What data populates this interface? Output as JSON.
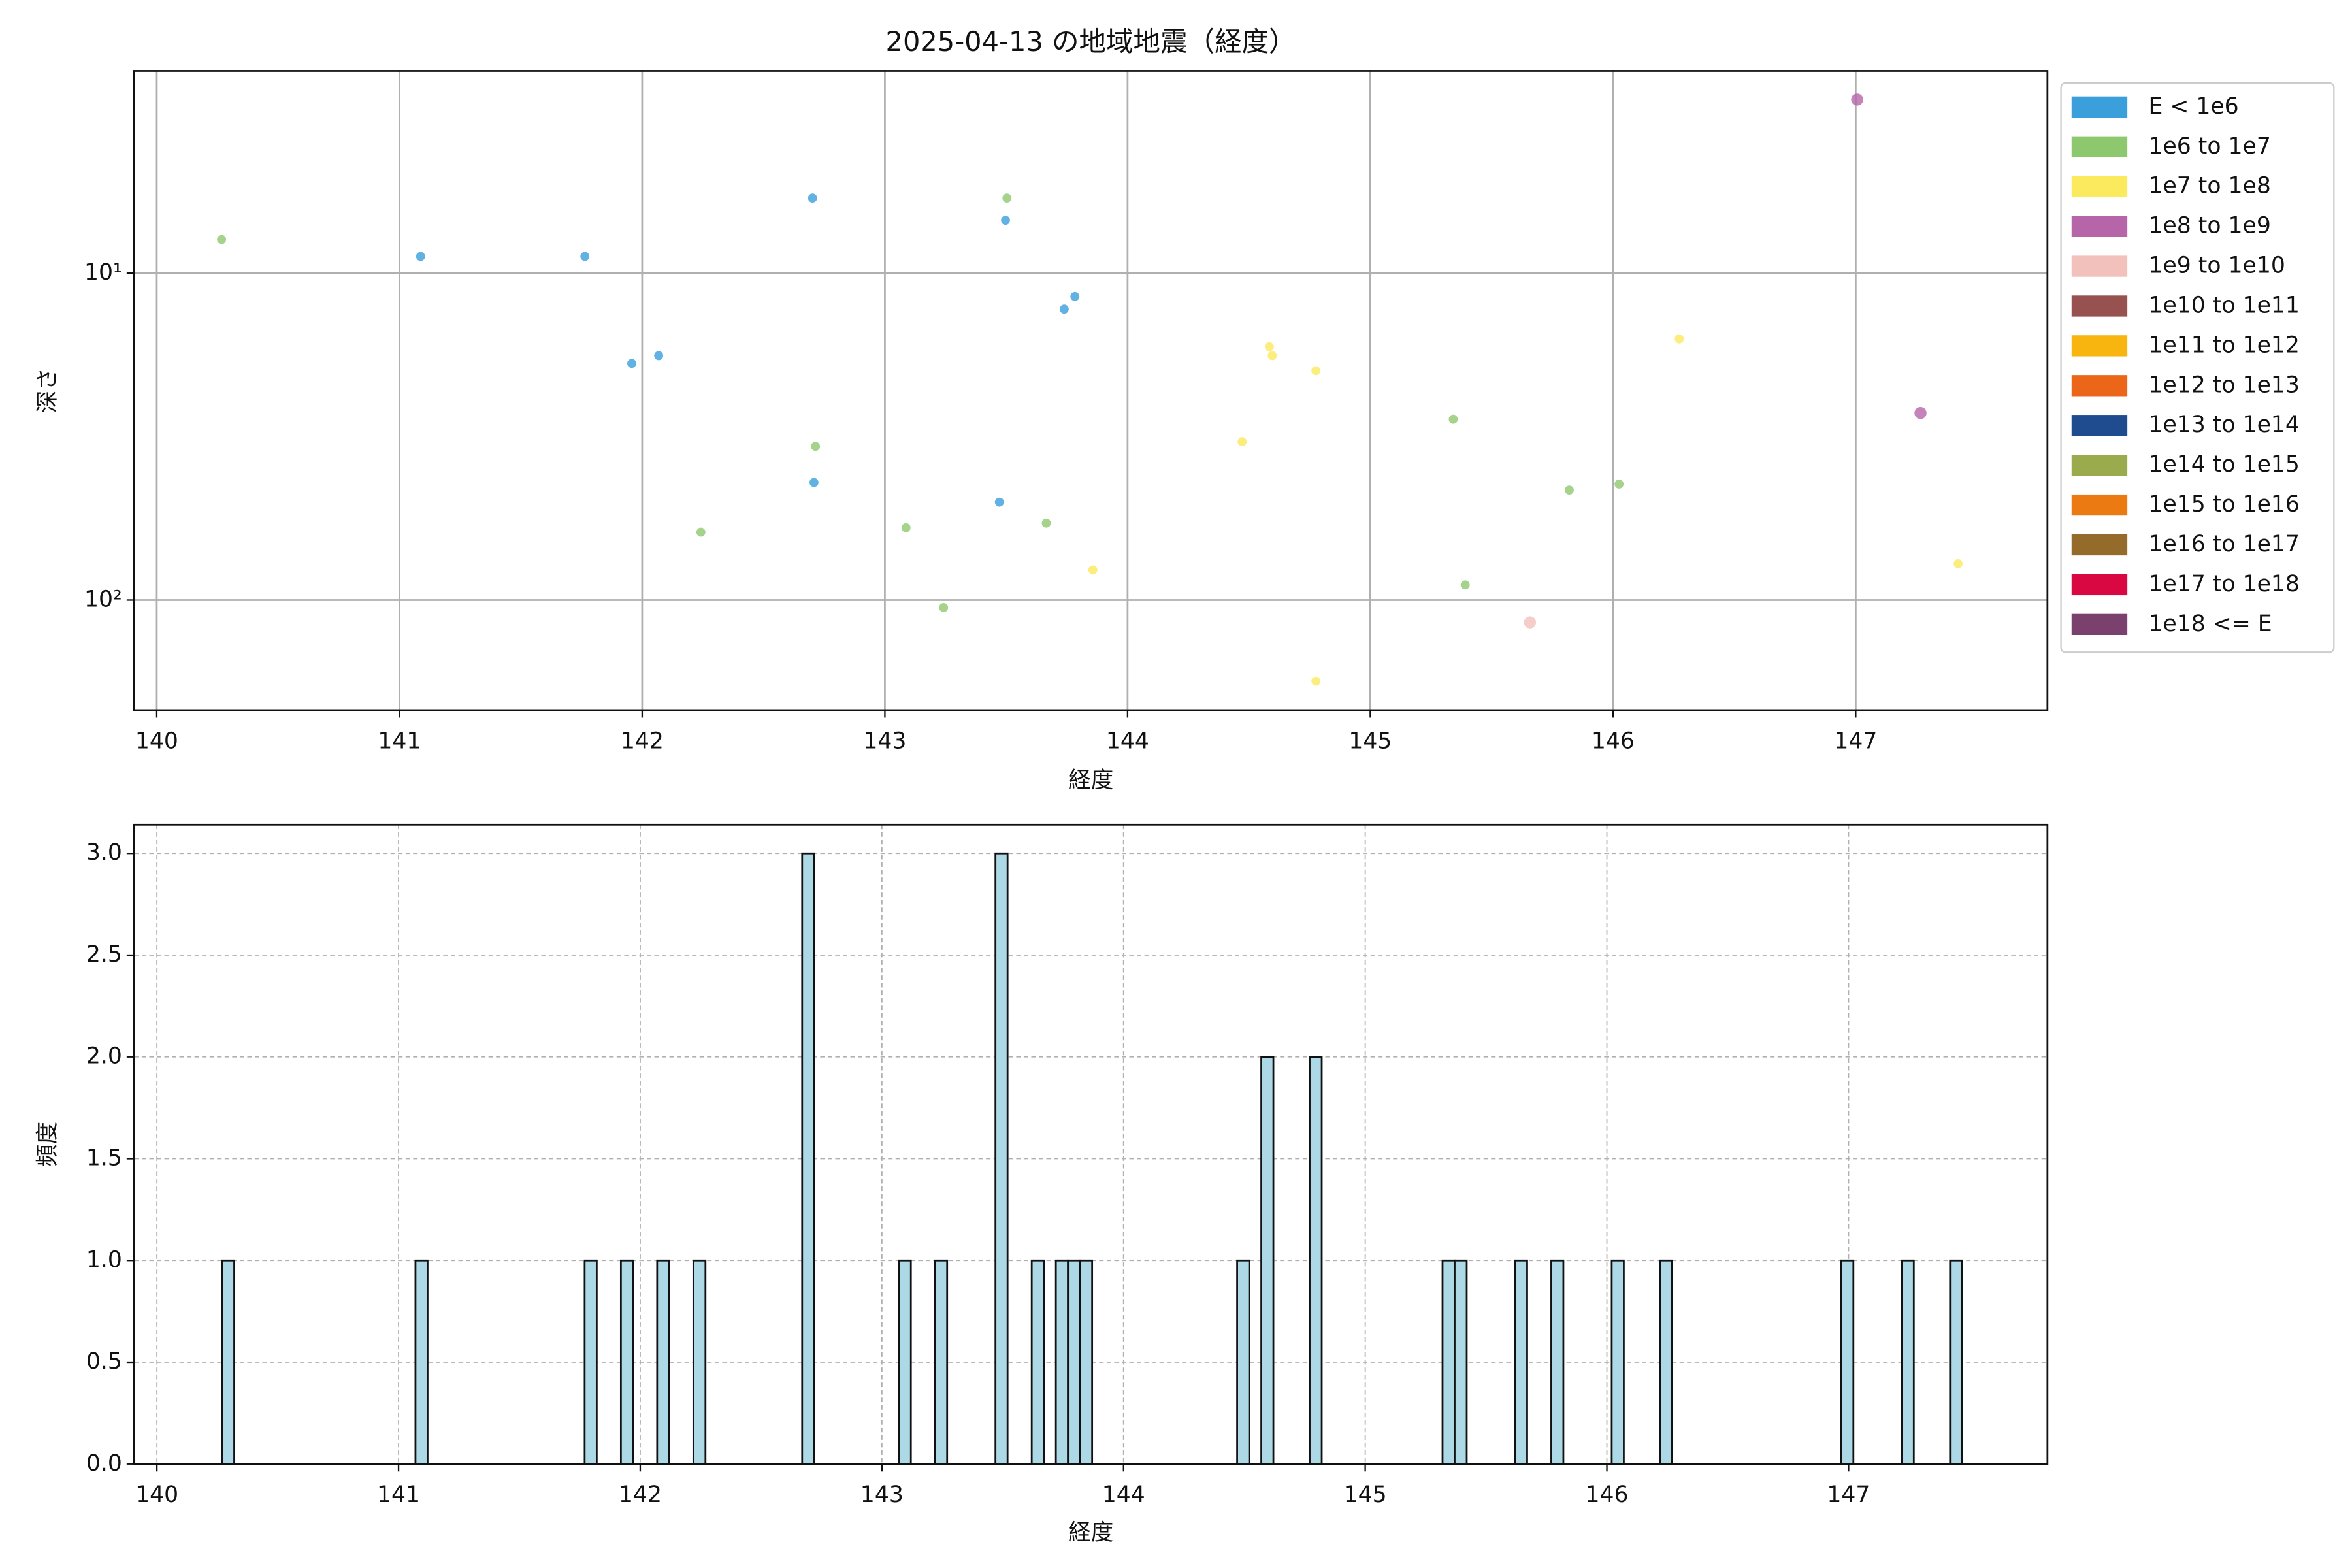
{
  "chart_data": [
    {
      "type": "scatter",
      "title": "2025-04-13 の地域地震（経度）",
      "x_label": "経度",
      "y_label": "深さ",
      "xlim": [
        139.907,
        147.79
      ],
      "xticks": [
        140,
        141,
        142,
        143,
        144,
        145,
        146,
        147
      ],
      "ylim": [
        217,
        2.41
      ],
      "y_log": true,
      "yticks": [
        {
          "value": 10,
          "label": "10¹"
        },
        {
          "value": 100,
          "label": "10²"
        }
      ],
      "grid": true,
      "grid_linestyle": "solid",
      "legend": "outside upper right",
      "series": [
        {
          "name": "E < 1e6",
          "color": "#3a9fdb",
          "x": [
            141.087,
            141.764,
            141.957,
            142.068,
            142.702,
            143.497,
            143.783,
            143.739,
            142.708,
            143.472
          ],
          "values": [
            8.9,
            8.9,
            18.9,
            17.9,
            5.9,
            6.9,
            11.8,
            12.9,
            43.7,
            50.2
          ]
        },
        {
          "name": "1e6 to 1e7",
          "color": "#8ec86e",
          "x": [
            140.267,
            143.503,
            142.714,
            142.242,
            143.087,
            143.665,
            143.242,
            145.342,
            145.391,
            145.82,
            146.025
          ],
          "values": [
            7.9,
            5.9,
            33.9,
            62.0,
            60.1,
            58.2,
            105.4,
            28.0,
            89.9,
            46.1,
            44.2
          ]
        },
        {
          "name": "1e7 to 1e8",
          "color": "#fbea5e",
          "x": [
            144.584,
            144.596,
            144.776,
            144.472,
            143.857,
            144.776,
            146.273,
            147.422
          ],
          "values": [
            16.8,
            17.9,
            19.9,
            32.8,
            80.9,
            177,
            15.9,
            77.4
          ]
        },
        {
          "name": "1e8 to 1e9",
          "color": "#b665a8",
          "x": [
            147.006,
            147.267
          ],
          "values": [
            2.95,
            26.8
          ]
        },
        {
          "name": "1e9 to 1e10",
          "color": "#f3c1bc",
          "x": [
            145.658
          ],
          "values": [
            117
          ]
        },
        {
          "name": "1e10 to 1e11",
          "color": "#97524f",
          "x": [],
          "values": []
        },
        {
          "name": "1e11 to 1e12",
          "color": "#f8b40f",
          "x": [],
          "values": []
        },
        {
          "name": "1e12 to 1e13",
          "color": "#eb6618",
          "x": [],
          "values": []
        },
        {
          "name": "1e13 to 1e14",
          "color": "#1e4c8f",
          "x": [],
          "values": []
        },
        {
          "name": "1e14 to 1e15",
          "color": "#9aab4d",
          "x": [],
          "values": []
        },
        {
          "name": "1e15 to 1e16",
          "color": "#ec7a12",
          "x": [],
          "values": []
        },
        {
          "name": "1e16 to 1e17",
          "color": "#946b2b",
          "x": [],
          "values": []
        },
        {
          "name": "1e17 to 1e18",
          "color": "#d90843",
          "x": [],
          "values": []
        },
        {
          "name": "1e18 <= E",
          "color": "#7a416e",
          "x": [],
          "values": []
        }
      ]
    },
    {
      "type": "histogram",
      "x_label": "経度",
      "y_label": "頻度",
      "color": "#add8e6",
      "xlim": [
        139.906,
        147.823
      ],
      "xticks": [
        140,
        141,
        142,
        143,
        144,
        145,
        146,
        147
      ],
      "ylim": [
        0,
        3.141
      ],
      "yticks": [
        {
          "value": 0,
          "label": "0.0"
        },
        {
          "value": 0.5,
          "label": "0.5"
        },
        {
          "value": 1,
          "label": "1.0"
        },
        {
          "value": 1.5,
          "label": "1.5"
        },
        {
          "value": 2,
          "label": "2.0"
        },
        {
          "value": 2.5,
          "label": "2.5"
        },
        {
          "value": 3,
          "label": "3.0"
        }
      ],
      "grid": true,
      "grid_linestyle": "dashed",
      "bins": [
        140.27,
        140.32,
        141.07,
        141.12,
        141.77,
        141.82,
        141.92,
        141.97,
        142.07,
        142.12,
        142.22,
        142.27,
        142.67,
        142.72,
        143.07,
        143.12,
        143.22,
        143.27,
        143.47,
        143.52,
        143.62,
        143.67,
        143.72,
        143.77,
        143.82,
        143.87,
        144.47,
        144.52,
        144.57,
        144.62,
        144.77,
        144.82,
        145.32,
        145.37,
        145.42,
        145.62,
        145.67,
        145.77,
        145.82,
        146.02,
        146.07,
        146.22,
        146.27,
        146.97,
        147.02,
        147.22,
        147.27,
        147.42,
        147.47
      ],
      "values": [
        1,
        0,
        1,
        0,
        1,
        0,
        1,
        0,
        1,
        0,
        1,
        0,
        3,
        0,
        1,
        0,
        1,
        0,
        3,
        0,
        1,
        0,
        1,
        1,
        1,
        0,
        1,
        0,
        2,
        0,
        2,
        0,
        1,
        1,
        0,
        1,
        0,
        1,
        0,
        1,
        0,
        1,
        0,
        1,
        0,
        1,
        0,
        1
      ]
    }
  ]
}
